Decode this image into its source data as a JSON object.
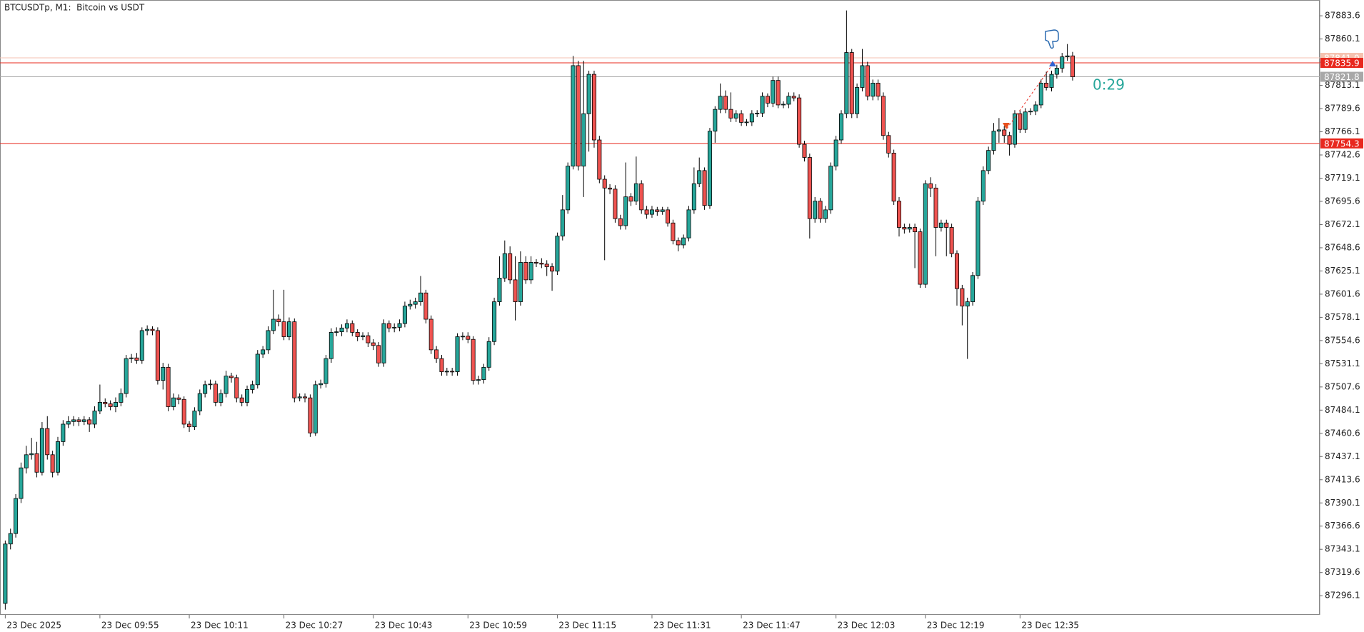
{
  "chart_data": {
    "type": "candlestick",
    "title": "BTCUSDTp, M1:  Bitcoin vs USDT",
    "countdown": "0:29",
    "up_color": "#26a69a",
    "down_color": "#ef5350",
    "ylim": [
      87276.7,
      87899.6
    ],
    "yticks": [
      87883.6,
      87860.1,
      87836.6,
      87813.1,
      87789.6,
      87766.1,
      87742.6,
      87719.1,
      87695.6,
      87672.1,
      87648.6,
      87625.1,
      87601.6,
      87578.1,
      87554.6,
      87531.1,
      87507.6,
      87484.1,
      87460.6,
      87437.1,
      87413.6,
      87390.1,
      87366.6,
      87343.1,
      87319.6,
      87296.1
    ],
    "xlim": [
      -1,
      250
    ],
    "xticks": [
      {
        "value": 0,
        "label": "23 Dec 2025"
      },
      {
        "value": 18,
        "label": "23 Dec 09:55"
      },
      {
        "value": 35,
        "label": "23 Dec 10:11"
      },
      {
        "value": 53,
        "label": "23 Dec 10:27"
      },
      {
        "value": 70,
        "label": "23 Dec 10:43"
      },
      {
        "value": 88,
        "label": "23 Dec 10:59"
      },
      {
        "value": 105,
        "label": "23 Dec 11:15"
      },
      {
        "value": 123,
        "label": "23 Dec 11:31"
      },
      {
        "value": 140,
        "label": "23 Dec 11:47"
      },
      {
        "value": 158,
        "label": "23 Dec 12:03"
      },
      {
        "value": 175,
        "label": "23 Dec 12:19"
      },
      {
        "value": 193,
        "label": "23 Dec 12:35"
      }
    ],
    "levels": [
      {
        "value": 87841.0,
        "label": "87841.0",
        "color": "#f6c2b0"
      },
      {
        "value": 87835.9,
        "label": "87835.9",
        "color": "#e8281e"
      },
      {
        "value": 87821.8,
        "label": "87821.8",
        "color": "#a8a8a8"
      },
      {
        "value": 87754.3,
        "label": "87754.3",
        "color": "#e8281e"
      }
    ],
    "candles": [
      [
        87288.3,
        87352,
        87282,
        87348.5
      ],
      [
        87348.5,
        87364,
        87343,
        87359.1
      ],
      [
        87359.1,
        87399,
        87355,
        87394.6
      ],
      [
        87394.6,
        87431,
        87390,
        87425.6
      ],
      [
        87425.6,
        87448,
        87420,
        87438.9
      ],
      [
        87438.9,
        87456,
        87434,
        87440.0
      ],
      [
        87440.0,
        87452,
        87416,
        87421.2
      ],
      [
        87421.2,
        87472,
        87418,
        87465.5
      ],
      [
        87465.5,
        87478,
        87434,
        87438.9
      ],
      [
        87438.9,
        87443,
        87416,
        87421.2
      ],
      [
        87421.2,
        87457,
        87418,
        87452.2
      ],
      [
        87452.2,
        87474,
        87448,
        87469.9
      ],
      [
        87469.9,
        87478,
        87466,
        87472.5
      ],
      [
        87472.5,
        87478,
        87468,
        87474.3
      ],
      [
        87474.3,
        87477,
        87468,
        87472.5
      ],
      [
        87472.5,
        87478,
        87469,
        87474.3
      ],
      [
        87474.3,
        87477,
        87462,
        87469.9
      ],
      [
        87469.9,
        87488,
        87466,
        87483.2
      ],
      [
        87483.2,
        87510,
        87480,
        87492.0
      ],
      [
        87492.0,
        87496,
        87487,
        87490.5
      ],
      [
        87490.5,
        87494,
        87484,
        87487.6
      ],
      [
        87487.6,
        87497,
        87482,
        87492.0
      ],
      [
        87492.0,
        87506,
        87488,
        87500.9
      ],
      [
        87500.9,
        87540,
        87497,
        87536.3
      ],
      [
        87536.3,
        87541,
        87532,
        87537.0
      ],
      [
        87537.0,
        87542,
        87531,
        87534.6
      ],
      [
        87534.6,
        87568,
        87531,
        87564.7
      ],
      [
        87564.7,
        87570,
        87560,
        87566.0
      ],
      [
        87566.0,
        87569,
        87560,
        87564.7
      ],
      [
        87564.7,
        87568,
        87510,
        87514.2
      ],
      [
        87514.2,
        87532,
        87505,
        87527.5
      ],
      [
        87527.5,
        87531,
        87483,
        87487.6
      ],
      [
        87487.6,
        87501,
        87484,
        87496.5
      ],
      [
        87496.5,
        87500,
        87490,
        87495.0
      ],
      [
        87495.0,
        87498,
        87466,
        87469.9
      ],
      [
        87469.9,
        87473,
        87462,
        87467.2
      ],
      [
        87467.2,
        87487,
        87464,
        87483.2
      ],
      [
        87483.2,
        87505,
        87479,
        87500.9
      ],
      [
        87500.9,
        87514,
        87497,
        87509.8
      ],
      [
        87509.8,
        87515,
        87505,
        87510.5
      ],
      [
        87510.5,
        87514,
        87488,
        87492.0
      ],
      [
        87492.0,
        87505,
        87488,
        87500.9
      ],
      [
        87500.9,
        87524,
        87497,
        87518.6
      ],
      [
        87518.6,
        87522,
        87512,
        87517.0
      ],
      [
        87517.0,
        87520,
        87492,
        87496.5
      ],
      [
        87496.5,
        87500,
        87488,
        87492.0
      ],
      [
        87492.0,
        87509,
        87488,
        87505.0
      ],
      [
        87505.0,
        87514,
        87501,
        87509.8
      ],
      [
        87509.8,
        87545,
        87506,
        87540.8
      ],
      [
        87540.8,
        87549,
        87537,
        87545.2
      ],
      [
        87545.2,
        87569,
        87541,
        87564.7
      ],
      [
        87564.7,
        87606,
        87561,
        87576.2
      ],
      [
        87576.2,
        87581,
        87569,
        87573.6
      ],
      [
        87573.6,
        87606,
        87555,
        87558.5
      ],
      [
        87558.5,
        87578,
        87555,
        87573.6
      ],
      [
        87573.6,
        87577,
        87492,
        87496.5
      ],
      [
        87496.5,
        87501,
        87493,
        87497.5
      ],
      [
        87497.5,
        87501,
        87492,
        87496.5
      ],
      [
        87496.5,
        87500,
        87457,
        87461.0
      ],
      [
        87461.0,
        87514,
        87458,
        87509.8
      ],
      [
        87509.8,
        87515,
        87506,
        87511.0
      ],
      [
        87511.0,
        87540,
        87507,
        87536.3
      ],
      [
        87536.3,
        87567,
        87532,
        87562.9
      ],
      [
        87562.9,
        87568,
        87559,
        87563.5
      ],
      [
        87563.5,
        87571,
        87559,
        87567.3
      ],
      [
        87567.3,
        87576,
        87563,
        87571.8
      ],
      [
        87571.8,
        87575,
        87559,
        87562.9
      ],
      [
        87562.9,
        87566,
        87554,
        87558.5
      ],
      [
        87558.5,
        87563,
        87555,
        87559.5
      ],
      [
        87559.5,
        87563,
        87548,
        87552.3
      ],
      [
        87552.3,
        87556,
        87545,
        87549.6
      ],
      [
        87549.6,
        87553,
        87528,
        87531.9
      ],
      [
        87531.9,
        87576,
        87528,
        87571.8
      ],
      [
        87571.8,
        87575,
        87563,
        87567.3
      ],
      [
        87567.3,
        87572,
        87563,
        87568.0
      ],
      [
        87568.0,
        87576,
        87564,
        87571.8
      ],
      [
        87571.8,
        87594,
        87568,
        87589.5
      ],
      [
        87589.5,
        87596,
        87586,
        87591.3
      ],
      [
        87591.3,
        87598,
        87587,
        87593.9
      ],
      [
        87593.9,
        87620,
        87590,
        87602.8
      ],
      [
        87602.8,
        87606,
        87572,
        87576.2
      ],
      [
        87576.2,
        87580,
        87541,
        87545.2
      ],
      [
        87545.2,
        87549,
        87532,
        87536.3
      ],
      [
        87536.3,
        87540,
        87519,
        87523.0
      ],
      [
        87523.0,
        87527,
        87519,
        87523.5
      ],
      [
        87523.5,
        87527,
        87519,
        87523.0
      ],
      [
        87523.0,
        87562,
        87519,
        87558.5
      ],
      [
        87558.5,
        87563,
        87555,
        87559.0
      ],
      [
        87559.0,
        87563,
        87552,
        87555.8
      ],
      [
        87555.8,
        87559,
        87510,
        87514.2
      ],
      [
        87514.2,
        87519,
        87510,
        87515.0
      ],
      [
        87515.0,
        87531,
        87511,
        87527.5
      ],
      [
        87527.5,
        87558,
        87524,
        87553.6
      ],
      [
        87553.6,
        87598,
        87550,
        87593.9
      ],
      [
        87593.9,
        87640,
        87590,
        87617.9
      ],
      [
        87617.9,
        87656,
        87614,
        87642.7
      ],
      [
        87642.7,
        87650,
        87612,
        87616.1
      ],
      [
        87616.1,
        87640,
        87575,
        87593.9
      ],
      [
        87593.9,
        87645,
        87590,
        87633.8
      ],
      [
        87633.8,
        87640,
        87612,
        87616.1
      ],
      [
        87616.1,
        87640,
        87612,
        87633.8
      ],
      [
        87633.8,
        87637,
        87629,
        87633.0
      ],
      [
        87633.0,
        87638,
        87628,
        87632.0
      ],
      [
        87632.0,
        87636,
        87620,
        87629.4
      ],
      [
        87629.4,
        87633,
        87605,
        87624.9
      ],
      [
        87624.9,
        87664,
        87621,
        87660.4
      ],
      [
        87660.4,
        87702,
        87656,
        87687.0
      ],
      [
        87687.0,
        87735,
        87683,
        87731.3
      ],
      [
        87731.3,
        87843,
        87728,
        87833.1
      ],
      [
        87833.1,
        87838,
        87727,
        87731.3
      ],
      [
        87731.3,
        87838,
        87700,
        87784.4
      ],
      [
        87784.4,
        87828,
        87746,
        87824.3
      ],
      [
        87824.3,
        87828,
        87750,
        87757.8
      ],
      [
        87757.8,
        87762,
        87714,
        87718.0
      ],
      [
        87718.0,
        87722,
        87636,
        87709.1
      ],
      [
        87709.1,
        87713,
        87703,
        87708.0
      ],
      [
        87708.0,
        87712,
        87674,
        87678.1
      ],
      [
        87678.1,
        87682,
        87667,
        87671.0
      ],
      [
        87671.0,
        87735,
        87667,
        87700.2
      ],
      [
        87700.2,
        87704,
        87691,
        87695.8
      ],
      [
        87695.8,
        87741,
        87692,
        87713.5
      ],
      [
        87713.5,
        87717,
        87683,
        87687.0
      ],
      [
        87687.0,
        87691,
        87678,
        87682.5
      ],
      [
        87682.5,
        87691,
        87679,
        87687.0
      ],
      [
        87687.0,
        87690,
        87681,
        87685.2
      ],
      [
        87685.2,
        87690,
        87682,
        87687.0
      ],
      [
        87687.0,
        87690,
        87670,
        87673.7
      ],
      [
        87673.7,
        87677,
        87652,
        87655.9
      ],
      [
        87655.9,
        87659,
        87645,
        87651.5
      ],
      [
        87651.5,
        87662,
        87648,
        87658.6
      ],
      [
        87658.6,
        87691,
        87655,
        87687.0
      ],
      [
        87687.0,
        87730,
        87683,
        87713.5
      ],
      [
        87713.5,
        87740,
        87710,
        87726.8
      ],
      [
        87726.8,
        87730,
        87687,
        87691.4
      ],
      [
        87691.4,
        87770,
        87688,
        87766.7
      ],
      [
        87766.7,
        87792,
        87755,
        87788.8
      ],
      [
        87788.8,
        87815,
        87785,
        87802.1
      ],
      [
        87802.1,
        87808,
        87785,
        87788.8
      ],
      [
        87788.8,
        87806,
        87776,
        87780.0
      ],
      [
        87780.0,
        87788,
        87776,
        87784.4
      ],
      [
        87784.4,
        87788,
        87772,
        87775.6
      ],
      [
        87775.6,
        87779,
        87772,
        87776.0
      ],
      [
        87776.0,
        87788,
        87772,
        87784.4
      ],
      [
        87784.4,
        87788,
        87781,
        87785.0
      ],
      [
        87785.0,
        87806,
        87781,
        87802.1
      ],
      [
        87802.1,
        87805,
        87791,
        87795.1
      ],
      [
        87795.1,
        87822,
        87791,
        87818.1
      ],
      [
        87818.1,
        87822,
        87790,
        87793.3
      ],
      [
        87793.3,
        87797,
        87790,
        87794.0
      ],
      [
        87794.0,
        87806,
        87790,
        87802.1
      ],
      [
        87802.1,
        87806,
        87797,
        87800.4
      ],
      [
        87800.4,
        87804,
        87750,
        87753.4
      ],
      [
        87753.4,
        87757,
        87736,
        87740.1
      ],
      [
        87740.1,
        87744,
        87658,
        87678.1
      ],
      [
        87678.1,
        87700,
        87674,
        87695.8
      ],
      [
        87695.8,
        87699,
        87674,
        87678.1
      ],
      [
        87678.1,
        87691,
        87674,
        87687.0
      ],
      [
        87687.0,
        87735,
        87683,
        87731.3
      ],
      [
        87731.3,
        87762,
        87727,
        87757.8
      ],
      [
        87757.8,
        87788,
        87754,
        87784.4
      ],
      [
        87784.4,
        87889,
        87780,
        87846.4
      ],
      [
        87846.4,
        87850,
        87780,
        87784.4
      ],
      [
        87784.4,
        87815,
        87780,
        87811.0
      ],
      [
        87811.0,
        87850,
        87807,
        87833.1
      ],
      [
        87833.1,
        87837,
        87798,
        87802.1
      ],
      [
        87802.1,
        87819,
        87798,
        87815.4
      ],
      [
        87815.4,
        87819,
        87798,
        87802.1
      ],
      [
        87802.1,
        87806,
        87758,
        87762.3
      ],
      [
        87762.3,
        87766,
        87740,
        87744.5
      ],
      [
        87744.5,
        87748,
        87692,
        87695.8
      ],
      [
        87695.8,
        87700,
        87660,
        87669.2
      ],
      [
        87669.2,
        87673,
        87663,
        87667.5
      ],
      [
        87667.5,
        87673,
        87664,
        87669.2
      ],
      [
        87669.2,
        87673,
        87628,
        87664.8
      ],
      [
        87664.8,
        87668,
        87608,
        87611.6
      ],
      [
        87611.6,
        87717,
        87608,
        87713.5
      ],
      [
        87713.5,
        87720,
        87700,
        87709.1
      ],
      [
        87709.1,
        87713,
        87640,
        87669.2
      ],
      [
        87669.2,
        87677,
        87665,
        87673.7
      ],
      [
        87673.7,
        87677,
        87640,
        87669.2
      ],
      [
        87669.2,
        87673,
        87639,
        87642.7
      ],
      [
        87642.7,
        87646,
        87590,
        87607.2
      ],
      [
        87607.2,
        87611,
        87570,
        87589.5
      ],
      [
        87589.5,
        87598,
        87536,
        87593.9
      ],
      [
        87593.9,
        87624,
        87590,
        87620.5
      ],
      [
        87620.5,
        87700,
        87617,
        87695.8
      ],
      [
        87695.8,
        87731,
        87692,
        87726.8
      ],
      [
        87726.8,
        87751,
        87723,
        87747.2
      ],
      [
        87747.2,
        87775,
        87743,
        87766.7
      ],
      [
        87766.7,
        87780,
        87755,
        87768.0
      ],
      [
        87768.0,
        87772,
        87755,
        87762.3
      ],
      [
        87762.3,
        87766,
        87742,
        87753.4
      ],
      [
        87753.4,
        87788,
        87750,
        87784.4
      ],
      [
        87784.4,
        87788,
        87765,
        87768.5
      ],
      [
        87768.5,
        87790,
        87765,
        87786.2
      ],
      [
        87786.2,
        87790,
        87783,
        87787.0
      ],
      [
        87787.0,
        87797,
        87783,
        87793.3
      ],
      [
        87793.3,
        87819,
        87790,
        87815.4
      ],
      [
        87815.4,
        87827,
        87808,
        87811.0
      ],
      [
        87811.0,
        87828,
        87807,
        87824.3
      ],
      [
        87824.3,
        87834,
        87820,
        87830.5
      ],
      [
        87830.5,
        87846,
        87826,
        87842.0
      ],
      [
        87842.0,
        87855,
        87838,
        87843.0
      ],
      [
        87843.0,
        87847,
        87818,
        87821.8
      ]
    ]
  }
}
